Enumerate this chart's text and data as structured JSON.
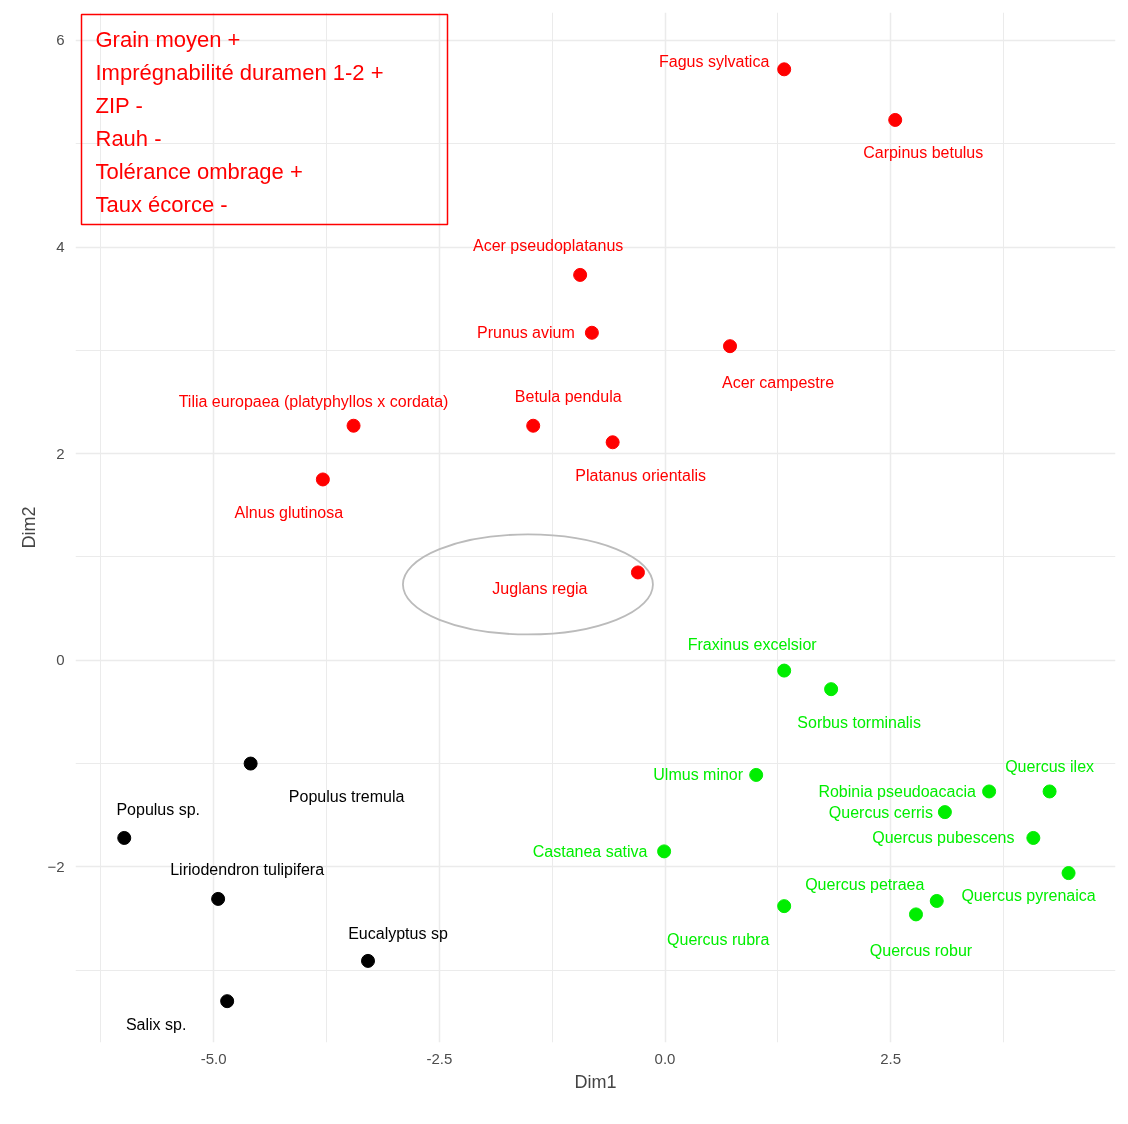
{
  "chart_data": {
    "type": "scatter",
    "xlabel": "Dim1",
    "ylabel": "Dim2",
    "xlim": [
      -6.53,
      4.99
    ],
    "ylim": [
      -3.7,
      6.27
    ],
    "xticks": [
      {
        "value": -5,
        "label": "-5.0"
      },
      {
        "value": -2.5,
        "label": "-2.5"
      },
      {
        "value": 0,
        "label": "0.0"
      },
      {
        "value": 2.5,
        "label": "2.5"
      }
    ],
    "yticks": [
      -2,
      0,
      2,
      4,
      6
    ],
    "grid": true,
    "marker": "circle",
    "annotations": [
      "Grain moyen +",
      "Imprégnabilité duramen 1-2 +",
      "ZIP -",
      "Rauh -",
      "Tolérance ombrage +",
      "Taux écorce -"
    ],
    "series": [
      {
        "name": "Fagus sylvatica",
        "color": "#ff0000",
        "x": [
          1.32
        ],
        "values": [
          5.72
        ]
      },
      {
        "name": "Carpinus betulus",
        "color": "#ff0000",
        "x": [
          2.55
        ],
        "values": [
          5.23
        ]
      },
      {
        "name": "Acer pseudoplatanus",
        "color": "#ff0000",
        "x": [
          -0.94
        ],
        "values": [
          3.73
        ]
      },
      {
        "name": "Prunus avium",
        "color": "#ff0000",
        "x": [
          -0.81
        ],
        "values": [
          3.17
        ]
      },
      {
        "name": "Acer campestre",
        "color": "#ff0000",
        "x": [
          0.72
        ],
        "values": [
          3.04
        ]
      },
      {
        "name": "Tilia europaea (platyphyllos x cordata)",
        "color": "#ff0000",
        "x": [
          -3.45
        ],
        "values": [
          2.27
        ]
      },
      {
        "name": "Betula pendula",
        "color": "#ff0000",
        "x": [
          -1.46
        ],
        "values": [
          2.27
        ]
      },
      {
        "name": "Platanus orientalis",
        "color": "#ff0000",
        "x": [
          -0.58
        ],
        "values": [
          2.11
        ]
      },
      {
        "name": "Alnus glutinosa",
        "color": "#ff0000",
        "x": [
          -3.79
        ],
        "values": [
          1.75
        ]
      },
      {
        "name": "Juglans regia",
        "color": "#ff0000",
        "x": [
          -0.3
        ],
        "values": [
          0.85
        ]
      },
      {
        "name": "Fraxinus excelsior",
        "color": "#00ee00",
        "x": [
          1.32
        ],
        "values": [
          -0.1
        ]
      },
      {
        "name": "Sorbus torminalis",
        "color": "#00ee00",
        "x": [
          1.84
        ],
        "values": [
          -0.28
        ]
      },
      {
        "name": "Ulmus minor",
        "color": "#00ee00",
        "x": [
          1.01
        ],
        "values": [
          -1.11
        ]
      },
      {
        "name": "Robinia pseudoacacia",
        "color": "#00ee00",
        "x": [
          3.59
        ],
        "values": [
          -1.27
        ]
      },
      {
        "name": "Quercus ilex",
        "color": "#00ee00",
        "x": [
          4.26
        ],
        "values": [
          -1.27
        ]
      },
      {
        "name": "Quercus cerris",
        "color": "#00ee00",
        "x": [
          3.1
        ],
        "values": [
          -1.47
        ]
      },
      {
        "name": "Quercus pubescens",
        "color": "#00ee00",
        "x": [
          4.08
        ],
        "values": [
          -1.72
        ]
      },
      {
        "name": "Castanea sativa",
        "color": "#00ee00",
        "x": [
          -0.01
        ],
        "values": [
          -1.85
        ]
      },
      {
        "name": "Quercus pyrenaica",
        "color": "#00ee00",
        "x": [
          4.47
        ],
        "values": [
          -2.06
        ]
      },
      {
        "name": "Quercus rubra",
        "color": "#00ee00",
        "x": [
          1.32
        ],
        "values": [
          -2.38
        ]
      },
      {
        "name": "Quercus petraea",
        "color": "#00ee00",
        "x": [
          3.01
        ],
        "values": [
          -2.33
        ]
      },
      {
        "name": "Quercus robur",
        "color": "#00ee00",
        "x": [
          2.78
        ],
        "values": [
          -2.46
        ]
      },
      {
        "name": "Populus tremula",
        "color": "#000000",
        "x": [
          -4.59
        ],
        "values": [
          -1.0
        ]
      },
      {
        "name": "Populus sp.",
        "color": "#000000",
        "x": [
          -5.99
        ],
        "values": [
          -1.72
        ]
      },
      {
        "name": "Liriodendron tulipifera",
        "color": "#000000",
        "x": [
          -4.95
        ],
        "values": [
          -2.31
        ]
      },
      {
        "name": "Eucalyptus sp",
        "color": "#000000",
        "x": [
          -3.29
        ],
        "values": [
          -2.91
        ]
      },
      {
        "name": "Salix sp.",
        "color": "#000000",
        "x": [
          -4.85
        ],
        "values": [
          -3.3
        ]
      }
    ]
  }
}
